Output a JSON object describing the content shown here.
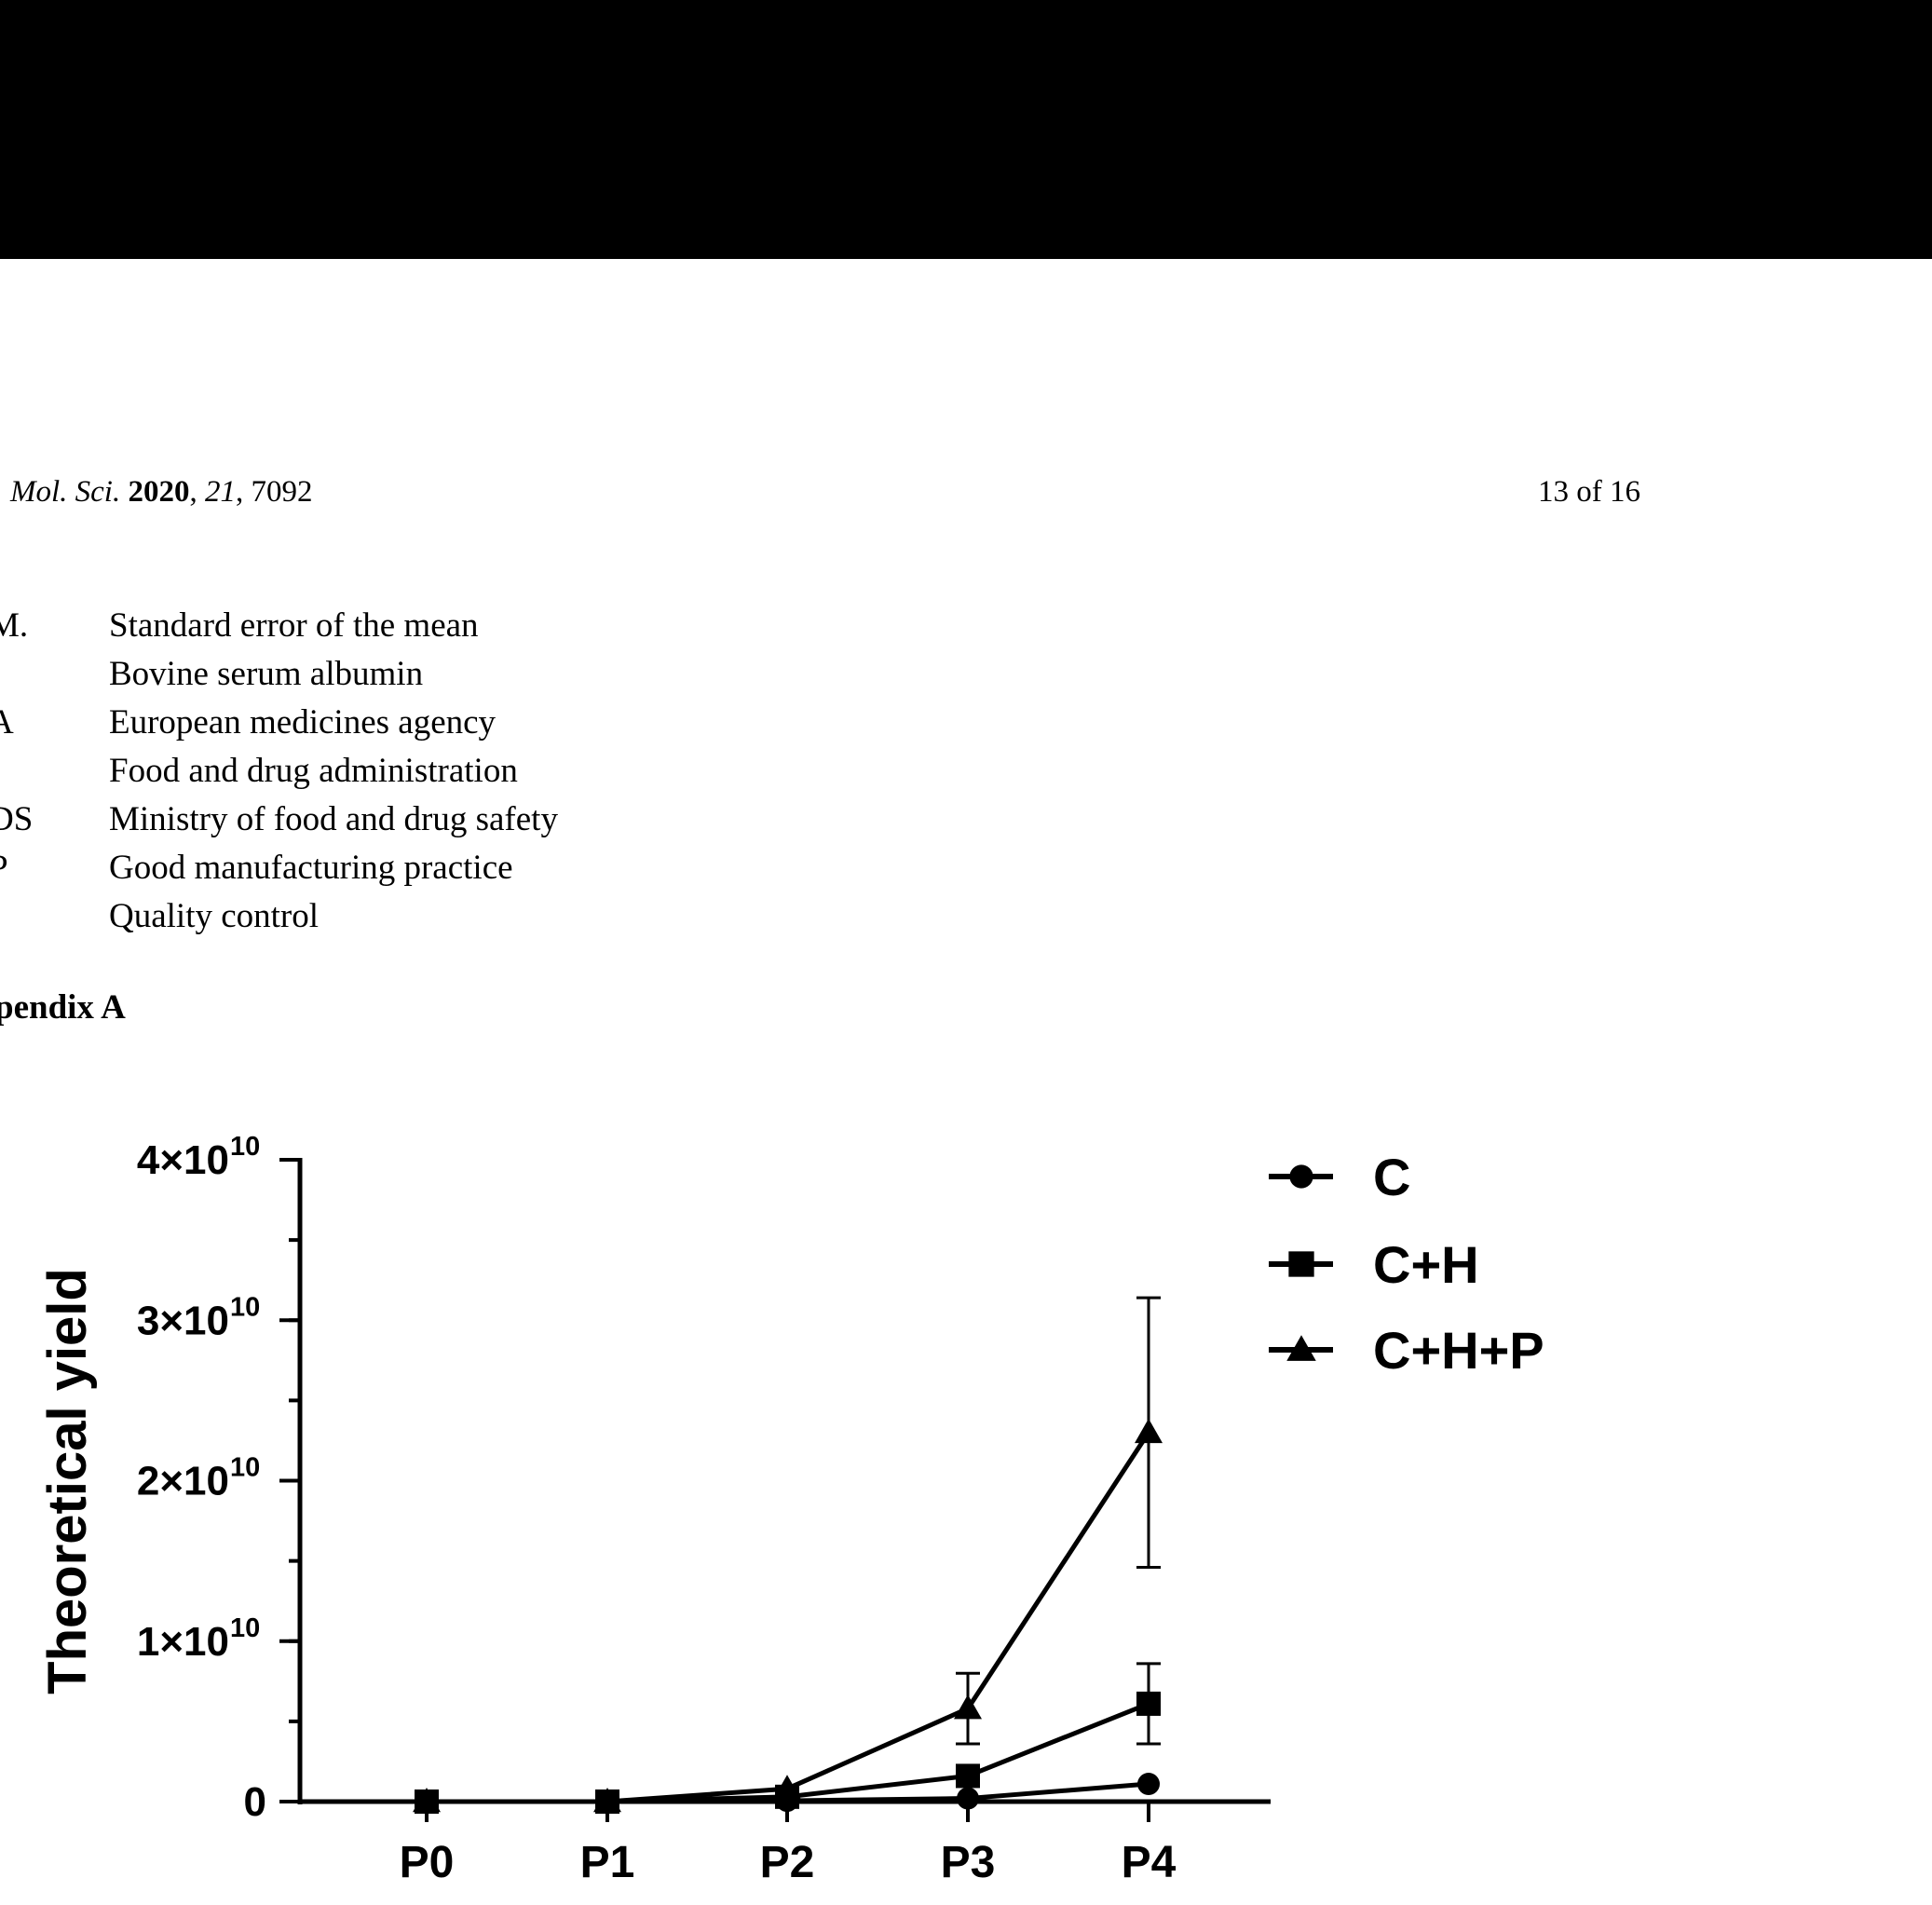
{
  "header": {
    "journal_abbr": "Mol. Sci.",
    "year": "2020",
    "volume": "21",
    "article": "7092",
    "page": "13 of 16"
  },
  "abbreviations": [
    {
      "key": "M.",
      "def": "Standard error of the mean"
    },
    {
      "key": "",
      "def": "Bovine serum albumin"
    },
    {
      "key": "A",
      "def": "European medicines agency"
    },
    {
      "key": "",
      "def": "Food and drug administration"
    },
    {
      "key": "DS",
      "def": "Ministry of food and drug safety"
    },
    {
      "key": "P",
      "def": "Good manufacturing practice"
    },
    {
      "key": "",
      "def": "Quality control"
    }
  ],
  "section_title": "pendix A",
  "chart_data": {
    "type": "line",
    "title": "",
    "xlabel": "",
    "ylabel": "Theoretical yield",
    "categories": [
      "P0",
      "P1",
      "P2",
      "P3",
      "P4"
    ],
    "ylim": [
      0,
      40000000000
    ],
    "y_ticks": [
      {
        "value": 0,
        "mantissa": "0",
        "exp": ""
      },
      {
        "value": 10000000000,
        "mantissa": "1×10",
        "exp": "10"
      },
      {
        "value": 20000000000,
        "mantissa": "2×10",
        "exp": "10"
      },
      {
        "value": 30000000000,
        "mantissa": "3×10",
        "exp": "10"
      },
      {
        "value": 40000000000,
        "mantissa": "4×10",
        "exp": "10"
      }
    ],
    "y_minor_step": 5000000000,
    "grid": false,
    "legend_position": "top-right",
    "series": [
      {
        "name": "C",
        "marker": "circle",
        "values": [
          0,
          0,
          50000000,
          200000000,
          1100000000
        ],
        "errors": [
          0,
          0,
          0,
          0,
          0
        ]
      },
      {
        "name": "C+H",
        "marker": "square",
        "values": [
          0,
          0,
          300000000,
          1600000000,
          6100000000
        ],
        "errors": [
          0,
          0,
          0,
          0,
          2500000000
        ]
      },
      {
        "name": "C+H+P",
        "marker": "triangle",
        "values": [
          0,
          0,
          800000000,
          5800000000,
          23000000000
        ],
        "errors": [
          0,
          0,
          0,
          2200000000,
          8400000000
        ]
      }
    ]
  }
}
